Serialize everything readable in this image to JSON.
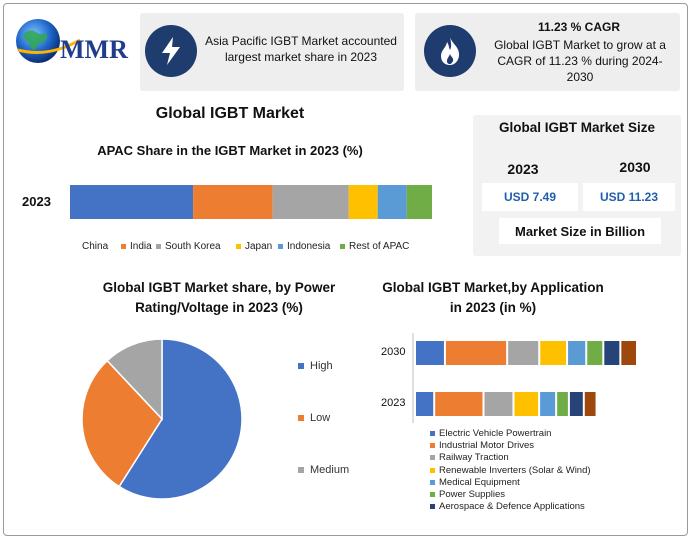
{
  "logo": {
    "text": "MMR"
  },
  "colors": {
    "blue": "#4472c4",
    "orange": "#ed7d31",
    "gray": "#a5a5a5",
    "yellow": "#ffc000",
    "lightblue": "#5b9bd5",
    "green": "#70ad47",
    "navy": "#264478",
    "brown": "#9e480e",
    "icon_bg": "#1f3c6e",
    "accent_text": "#1f5fa8"
  },
  "info_cards": [
    {
      "icon": "lightning-icon",
      "text": "Asia Pacific IGBT Market accounted largest market share in 2023"
    },
    {
      "icon": "flame-icon",
      "heading": "11.23 % CAGR",
      "text": "Global IGBT Market to grow at a CAGR of 11.23 % during 2024-2030"
    }
  ],
  "main_title": "Global IGBT Market",
  "market_size": {
    "title": "Global IGBT Market Size",
    "years": [
      "2023",
      "2030"
    ],
    "values": [
      "USD 7.49",
      "USD 11.23"
    ],
    "footer": "Market Size in Billion"
  },
  "chart_data": [
    {
      "type": "bar",
      "orientation": "horizontal-stacked",
      "title": "APAC Share in the IGBT Market in 2023 (%)",
      "categories": [
        "2023"
      ],
      "series": [
        {
          "name": "China",
          "values": [
            34
          ],
          "color": "#4472c4"
        },
        {
          "name": "India",
          "values": [
            22
          ],
          "color": "#ed7d31"
        },
        {
          "name": "South Korea",
          "values": [
            21
          ],
          "color": "#a5a5a5"
        },
        {
          "name": "Japan",
          "values": [
            8
          ],
          "color": "#ffc000"
        },
        {
          "name": "Indonesia",
          "values": [
            8
          ],
          "color": "#5b9bd5"
        },
        {
          "name": "Rest of APAC",
          "values": [
            7
          ],
          "color": "#70ad47"
        }
      ]
    },
    {
      "type": "pie",
      "title": "Global IGBT Market share, by Power Rating/Voltage in 2023  (%)",
      "labels": [
        "High",
        "Low",
        "Medium"
      ],
      "values": [
        59,
        29,
        12
      ],
      "colors": [
        "#4472c4",
        "#ed7d31",
        "#a5a5a5"
      ]
    },
    {
      "type": "bar",
      "orientation": "horizontal-stacked",
      "title": "Global IGBT Market,by Application in 2023 (in %)",
      "categories": [
        "2030",
        "2023"
      ],
      "series": [
        {
          "name": "Electric Vehicle Powertrain",
          "values": [
            13,
            8
          ],
          "color": "#4472c4"
        },
        {
          "name": "Industrial Motor Drives",
          "values": [
            28,
            22
          ],
          "color": "#ed7d31"
        },
        {
          "name": "Railway Traction",
          "values": [
            14,
            13
          ],
          "color": "#a5a5a5"
        },
        {
          "name": "Renewable Inverters (Solar & Wind)",
          "values": [
            12,
            11
          ],
          "color": "#ffc000"
        },
        {
          "name": "Medical Equipment",
          "values": [
            8,
            7
          ],
          "color": "#5b9bd5"
        },
        {
          "name": "Power Supplies",
          "values": [
            7,
            5
          ],
          "color": "#70ad47"
        },
        {
          "name": "Aerospace & Defence Applications",
          "values": [
            7,
            6
          ],
          "color": "#264478"
        },
        {
          "name": "",
          "values": [
            7,
            5
          ],
          "color": "#9e480e"
        }
      ]
    }
  ]
}
